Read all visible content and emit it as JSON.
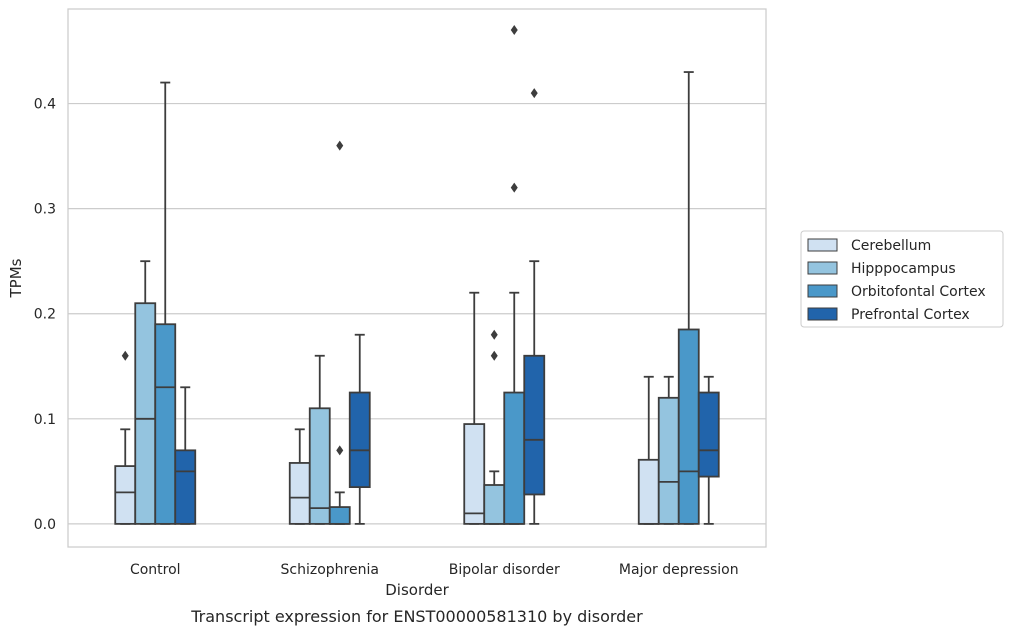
{
  "chart_data": {
    "type": "box",
    "caption": "Transcript expression for ENST00000581310 by disorder",
    "xlabel": "Disorder",
    "ylabel": "TPMs",
    "ylim": [
      -0.022,
      0.49
    ],
    "yticks": [
      "0.0",
      "0.1",
      "0.2",
      "0.3",
      "0.4"
    ],
    "grid": "horizontal",
    "legend_position": "right",
    "categories": [
      "Control",
      "Schizophrenia",
      "Bipolar disorder",
      "Major depression"
    ],
    "series": [
      {
        "name": "Cerebellum",
        "color": "#d0e1f2",
        "boxes": [
          {
            "whisker_low": 0.0,
            "q1": 0.0,
            "median": 0.03,
            "q3": 0.055,
            "whisker_high": 0.09,
            "outliers": [
              0.16
            ]
          },
          {
            "whisker_low": 0.0,
            "q1": 0.0,
            "median": 0.025,
            "q3": 0.058,
            "whisker_high": 0.09,
            "outliers": []
          },
          {
            "whisker_low": 0.0,
            "q1": 0.0,
            "median": 0.01,
            "q3": 0.095,
            "whisker_high": 0.22,
            "outliers": []
          },
          {
            "whisker_low": 0.0,
            "q1": 0.0,
            "median": 0.0,
            "q3": 0.061,
            "whisker_high": 0.14,
            "outliers": []
          }
        ]
      },
      {
        "name": "Hipppocampus",
        "color": "#94c4df",
        "boxes": [
          {
            "whisker_low": 0.0,
            "q1": 0.0,
            "median": 0.1,
            "q3": 0.21,
            "whisker_high": 0.25,
            "outliers": []
          },
          {
            "whisker_low": 0.0,
            "q1": 0.0,
            "median": 0.015,
            "q3": 0.11,
            "whisker_high": 0.16,
            "outliers": []
          },
          {
            "whisker_low": 0.0,
            "q1": 0.0,
            "median": 0.0,
            "q3": 0.037,
            "whisker_high": 0.05,
            "outliers": [
              0.16,
              0.18
            ]
          },
          {
            "whisker_low": 0.0,
            "q1": 0.0,
            "median": 0.04,
            "q3": 0.12,
            "whisker_high": 0.14,
            "outliers": []
          }
        ]
      },
      {
        "name": "Orbitofontal Cortex",
        "color": "#4a98c9",
        "boxes": [
          {
            "whisker_low": 0.0,
            "q1": 0.0,
            "median": 0.13,
            "q3": 0.19,
            "whisker_high": 0.42,
            "outliers": []
          },
          {
            "whisker_low": 0.0,
            "q1": 0.0,
            "median": 0.0,
            "q3": 0.016,
            "whisker_high": 0.03,
            "outliers": [
              0.07,
              0.36
            ]
          },
          {
            "whisker_low": 0.0,
            "q1": 0.0,
            "median": 0.0,
            "q3": 0.125,
            "whisker_high": 0.22,
            "outliers": [
              0.32,
              0.47
            ]
          },
          {
            "whisker_low": 0.0,
            "q1": 0.0,
            "median": 0.05,
            "q3": 0.185,
            "whisker_high": 0.43,
            "outliers": []
          }
        ]
      },
      {
        "name": "Prefrontal Cortex",
        "color": "#2164ab",
        "boxes": [
          {
            "whisker_low": 0.0,
            "q1": 0.0,
            "median": 0.05,
            "q3": 0.07,
            "whisker_high": 0.13,
            "outliers": []
          },
          {
            "whisker_low": 0.0,
            "q1": 0.035,
            "median": 0.07,
            "q3": 0.125,
            "whisker_high": 0.18,
            "outliers": []
          },
          {
            "whisker_low": 0.0,
            "q1": 0.028,
            "median": 0.08,
            "q3": 0.16,
            "whisker_high": 0.25,
            "outliers": [
              0.41
            ]
          },
          {
            "whisker_low": 0.0,
            "q1": 0.045,
            "median": 0.07,
            "q3": 0.125,
            "whisker_high": 0.14,
            "outliers": []
          }
        ]
      }
    ]
  }
}
